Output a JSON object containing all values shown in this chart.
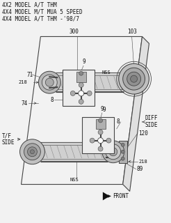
{
  "bg_color": "#f2f2f2",
  "line_color": "#444444",
  "text_color": "#111111",
  "title_lines": [
    "4X2 MODEL A/T THM",
    "4X4 MODEL M/T MUA 5 SPEED",
    "4X4 MODEL A/T THM -'98/7"
  ],
  "fig_w": 2.46,
  "fig_h": 3.2,
  "dpi": 100
}
